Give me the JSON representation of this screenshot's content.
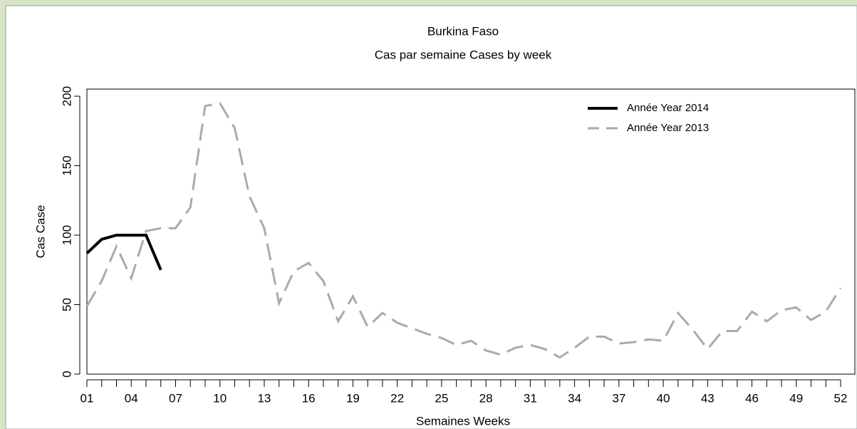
{
  "chart_data": {
    "type": "line",
    "title": "Burkina Faso",
    "subtitle": "Cas par semaine Cases by week",
    "x_label": "Semaines Weeks",
    "y_label": "Cas Case",
    "categories": [
      "01",
      null,
      null,
      "04",
      null,
      null,
      "07",
      null,
      null,
      "10",
      null,
      null,
      "13",
      null,
      null,
      "16",
      null,
      null,
      "19",
      null,
      null,
      "22",
      null,
      null,
      "25",
      null,
      null,
      "28",
      null,
      null,
      "31",
      null,
      null,
      "34",
      null,
      null,
      "37",
      null,
      null,
      "40",
      null,
      null,
      "43",
      null,
      null,
      "46",
      null,
      null,
      "49",
      null,
      null,
      "52"
    ],
    "series": [
      {
        "name": "Année Year 2014",
        "color": "#000000",
        "dash": false,
        "values": [
          87,
          97,
          100,
          100,
          100,
          75,
          null,
          null,
          null,
          null,
          null,
          null,
          null,
          null,
          null,
          null,
          null,
          null,
          null,
          null,
          null,
          null,
          null,
          null,
          null,
          null,
          null,
          null,
          null,
          null,
          null,
          null,
          null,
          null,
          null,
          null,
          null,
          null,
          null,
          null,
          null,
          null,
          null,
          null,
          null,
          null,
          null,
          null,
          null,
          null,
          null,
          null
        ]
      },
      {
        "name": "Année Year 2013",
        "color": "#aaaaaa",
        "dash": true,
        "values": [
          49,
          67,
          92,
          69,
          103,
          105,
          105,
          120,
          193,
          195,
          177,
          128,
          105,
          51,
          74,
          80,
          67,
          38,
          56,
          34,
          44,
          37,
          33,
          29,
          26,
          21,
          24,
          17,
          14,
          19,
          21,
          18,
          12,
          19,
          27,
          27,
          22,
          23,
          25,
          24,
          44,
          32,
          18,
          31,
          31,
          45,
          38,
          46,
          48,
          39,
          45,
          62
        ]
      }
    ],
    "ylim": [
      0,
      200
    ],
    "yticks": [
      0,
      50,
      100,
      150,
      200
    ],
    "legend": "top-right"
  }
}
